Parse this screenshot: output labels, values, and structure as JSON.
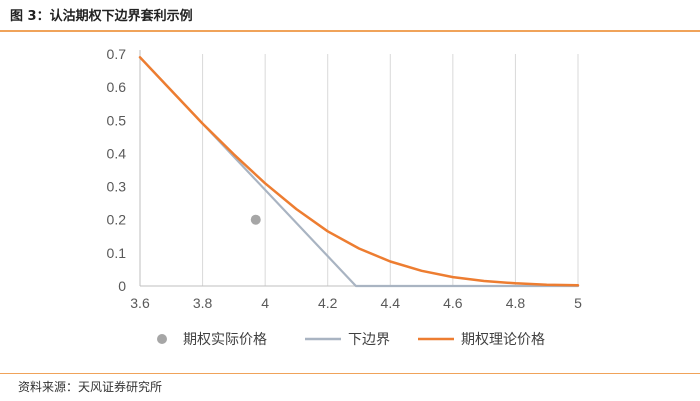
{
  "figure": {
    "title": "图 3：认沽期权下边界套利示例",
    "source": "资料来源：天风证券研究所"
  },
  "chart_data": {
    "type": "line",
    "title": "",
    "xlabel": "",
    "ylabel": "",
    "xlim": [
      3.6,
      5.0
    ],
    "ylim": [
      0,
      0.7
    ],
    "x_ticks": [
      "3.6",
      "3.8",
      "4",
      "4.2",
      "4.4",
      "4.6",
      "4.8",
      "5"
    ],
    "y_ticks": [
      "0",
      "0.1",
      "0.2",
      "0.3",
      "0.4",
      "0.5",
      "0.6",
      "0.7"
    ],
    "grid": "vertical",
    "legend": "bottom",
    "series": [
      {
        "name": "期权实际价格",
        "kind": "scatter",
        "color": "#a6a6a6",
        "points": [
          [
            3.97,
            0.2
          ]
        ]
      },
      {
        "name": "下边界",
        "kind": "line",
        "color": "#a9b4c2",
        "points": [
          [
            3.6,
            0.69
          ],
          [
            4.29,
            0.0
          ],
          [
            5.0,
            0.0
          ]
        ]
      },
      {
        "name": "期权理论价格",
        "kind": "line",
        "color": "#ed7d31",
        "points": [
          [
            3.6,
            0.69
          ],
          [
            3.7,
            0.59
          ],
          [
            3.8,
            0.49
          ],
          [
            3.9,
            0.397
          ],
          [
            4.0,
            0.31
          ],
          [
            4.1,
            0.232
          ],
          [
            4.2,
            0.165
          ],
          [
            4.3,
            0.113
          ],
          [
            4.4,
            0.074
          ],
          [
            4.5,
            0.046
          ],
          [
            4.6,
            0.027
          ],
          [
            4.7,
            0.015
          ],
          [
            4.8,
            0.008
          ],
          [
            4.9,
            0.004
          ],
          [
            5.0,
            0.002
          ]
        ]
      }
    ]
  }
}
